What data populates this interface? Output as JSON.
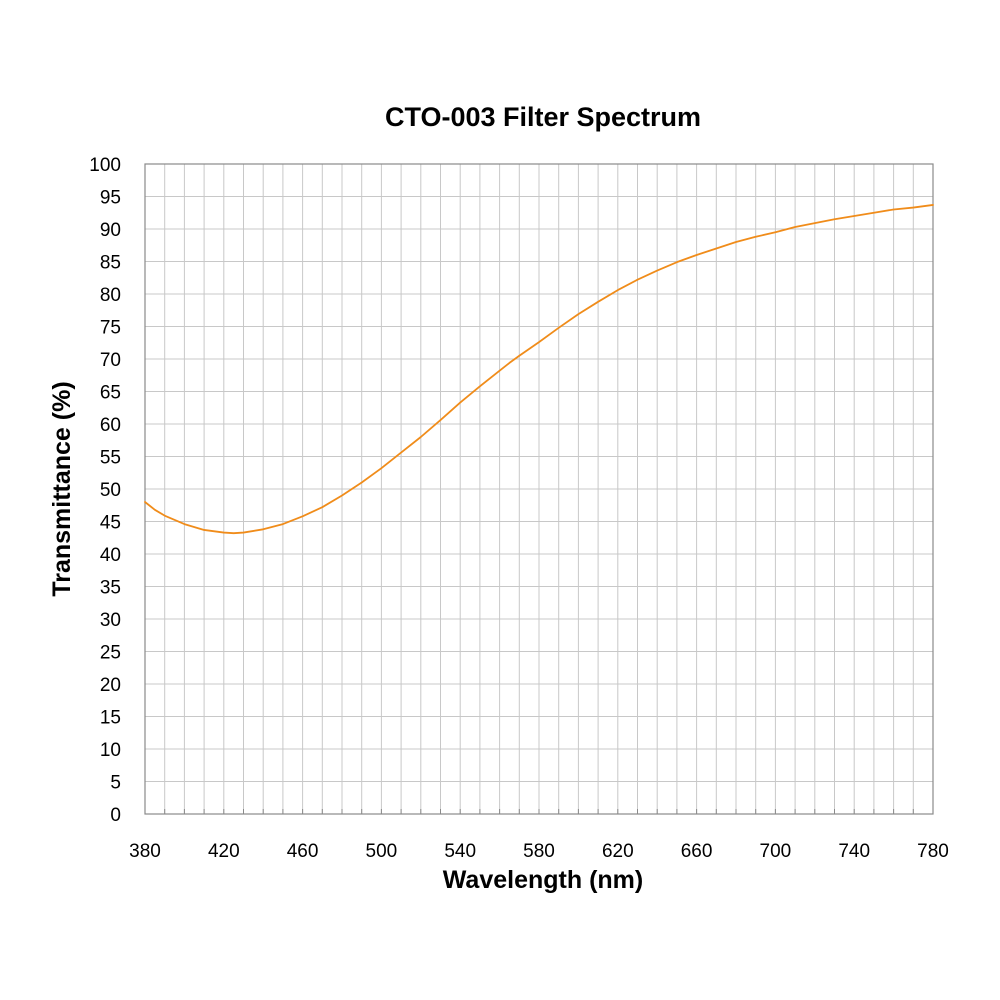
{
  "chart_data": {
    "type": "line",
    "title": "CTO-003 Filter Spectrum",
    "xlabel": "Wavelength (nm)",
    "ylabel": "Transmittance (%)",
    "xlim": [
      380,
      780
    ],
    "ylim": [
      0,
      100
    ],
    "x_ticks": [
      380,
      420,
      460,
      500,
      540,
      580,
      620,
      660,
      700,
      740,
      780
    ],
    "y_ticks": [
      0,
      5,
      10,
      15,
      20,
      25,
      30,
      35,
      40,
      45,
      50,
      55,
      60,
      65,
      70,
      75,
      80,
      85,
      90,
      95,
      100
    ],
    "grid": true,
    "legend": "none",
    "series": [
      {
        "color": "#f08c1a",
        "x": [
          380,
          385,
          390,
          400,
          410,
          420,
          425,
          430,
          440,
          450,
          460,
          470,
          480,
          490,
          500,
          510,
          520,
          530,
          540,
          550,
          560,
          565,
          570,
          580,
          590,
          600,
          610,
          620,
          630,
          640,
          650,
          660,
          670,
          680,
          690,
          700,
          710,
          720,
          730,
          740,
          750,
          760,
          770,
          780
        ],
        "y": [
          48.0,
          46.8,
          45.9,
          44.6,
          43.7,
          43.3,
          43.2,
          43.3,
          43.8,
          44.6,
          45.8,
          47.2,
          49.0,
          51.0,
          53.2,
          55.6,
          58.0,
          60.6,
          63.3,
          65.8,
          68.2,
          69.4,
          70.5,
          72.6,
          74.8,
          76.9,
          78.8,
          80.6,
          82.2,
          83.6,
          84.9,
          86.0,
          87.0,
          88.0,
          88.8,
          89.5,
          90.3,
          90.9,
          91.5,
          92.0,
          92.5,
          93.0,
          93.3,
          93.7
        ]
      }
    ]
  }
}
